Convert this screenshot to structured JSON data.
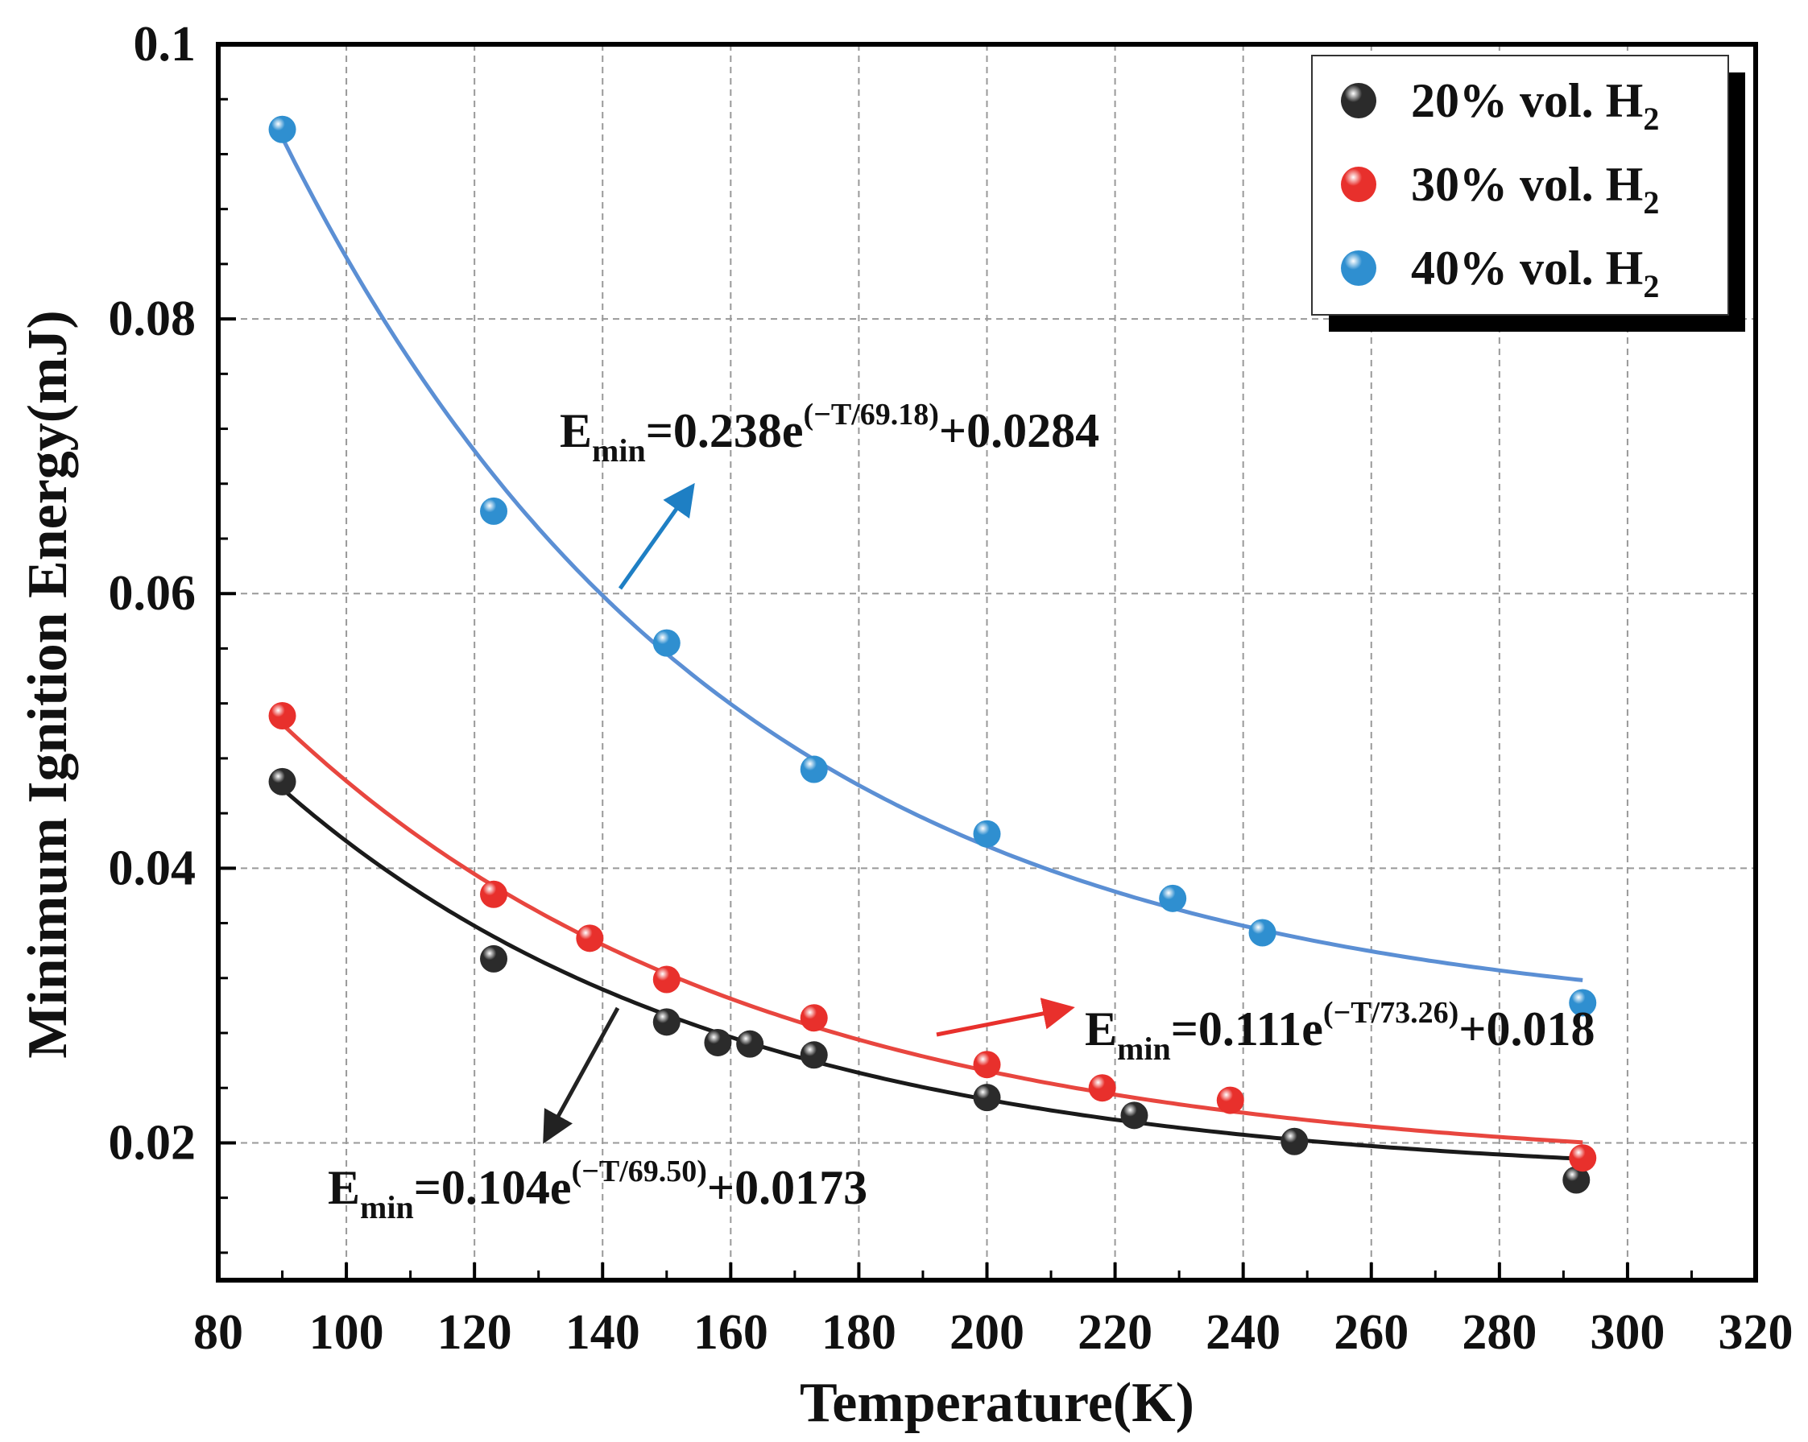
{
  "chart_data": {
    "type": "scatter",
    "xlabel": "Temperature(K)",
    "ylabel": "Minimum Ignition Energy(mJ)",
    "xlim": [
      80,
      320
    ],
    "ylim": [
      0.01,
      0.1
    ],
    "xticks": [
      80,
      100,
      120,
      140,
      160,
      180,
      200,
      220,
      240,
      260,
      280,
      300,
      320
    ],
    "xtick_labels": [
      "80",
      "100",
      "120",
      "140",
      "160",
      "180",
      "200",
      "220",
      "240",
      "260",
      "280",
      "300",
      "320"
    ],
    "yticks": [
      0.02,
      0.04,
      0.06,
      0.08,
      0.1
    ],
    "ytick_labels": [
      "0.02",
      "0.04",
      "0.06",
      "0.08",
      "0.1"
    ],
    "grid": true,
    "legend_placement": "top-right",
    "series": [
      {
        "name": "20% vol. H2",
        "legend_main": "20% vol. H",
        "legend_sub": "2",
        "color": "#2b2b2b",
        "line_color": "#1a1a1a",
        "x": [
          90,
          123,
          150,
          158,
          163,
          173,
          200,
          223,
          248,
          292
        ],
        "y": [
          0.0463,
          0.0334,
          0.0288,
          0.0273,
          0.0272,
          0.0264,
          0.0233,
          0.022,
          0.0201,
          0.0173
        ],
        "fit": {
          "a": 0.104,
          "t": 69.5,
          "c": 0.0173,
          "range": [
            90,
            292
          ]
        },
        "equation": {
          "E": "E",
          "sub": "min",
          "mid": "=0.104e",
          "sup": "(−T/69.50)",
          "tail": "+0.0173"
        }
      },
      {
        "name": "30% vol. H2",
        "legend_main": "30% vol. H",
        "legend_sub": "2",
        "color": "#e8302c",
        "line_color": "#e8463f",
        "x": [
          90,
          123,
          138,
          150,
          173,
          200,
          218,
          238,
          293
        ],
        "y": [
          0.0511,
          0.0381,
          0.0349,
          0.0319,
          0.0291,
          0.0257,
          0.024,
          0.0231,
          0.0189
        ],
        "fit": {
          "a": 0.111,
          "t": 73.26,
          "c": 0.018,
          "range": [
            90,
            293
          ]
        },
        "equation": {
          "E": "E",
          "sub": "min",
          "mid": "=0.111e",
          "sup": "(−T/73.26)",
          "tail": "+0.018"
        }
      },
      {
        "name": "40% vol. H2",
        "legend_main": "40% vol. H",
        "legend_sub": "2",
        "color": "#2f8fd0",
        "line_color": "#5b8fd4",
        "x": [
          90,
          123,
          150,
          173,
          200,
          229,
          243,
          293
        ],
        "y": [
          0.0938,
          0.066,
          0.0564,
          0.0472,
          0.0425,
          0.0378,
          0.0353,
          0.0302
        ],
        "fit": {
          "a": 0.238,
          "t": 69.18,
          "c": 0.0284,
          "range": [
            90,
            293
          ]
        },
        "equation": {
          "E": "E",
          "sub": "min",
          "mid": "=0.238e",
          "sup": "(−T/69.18)",
          "tail": "+0.0284"
        }
      }
    ]
  }
}
